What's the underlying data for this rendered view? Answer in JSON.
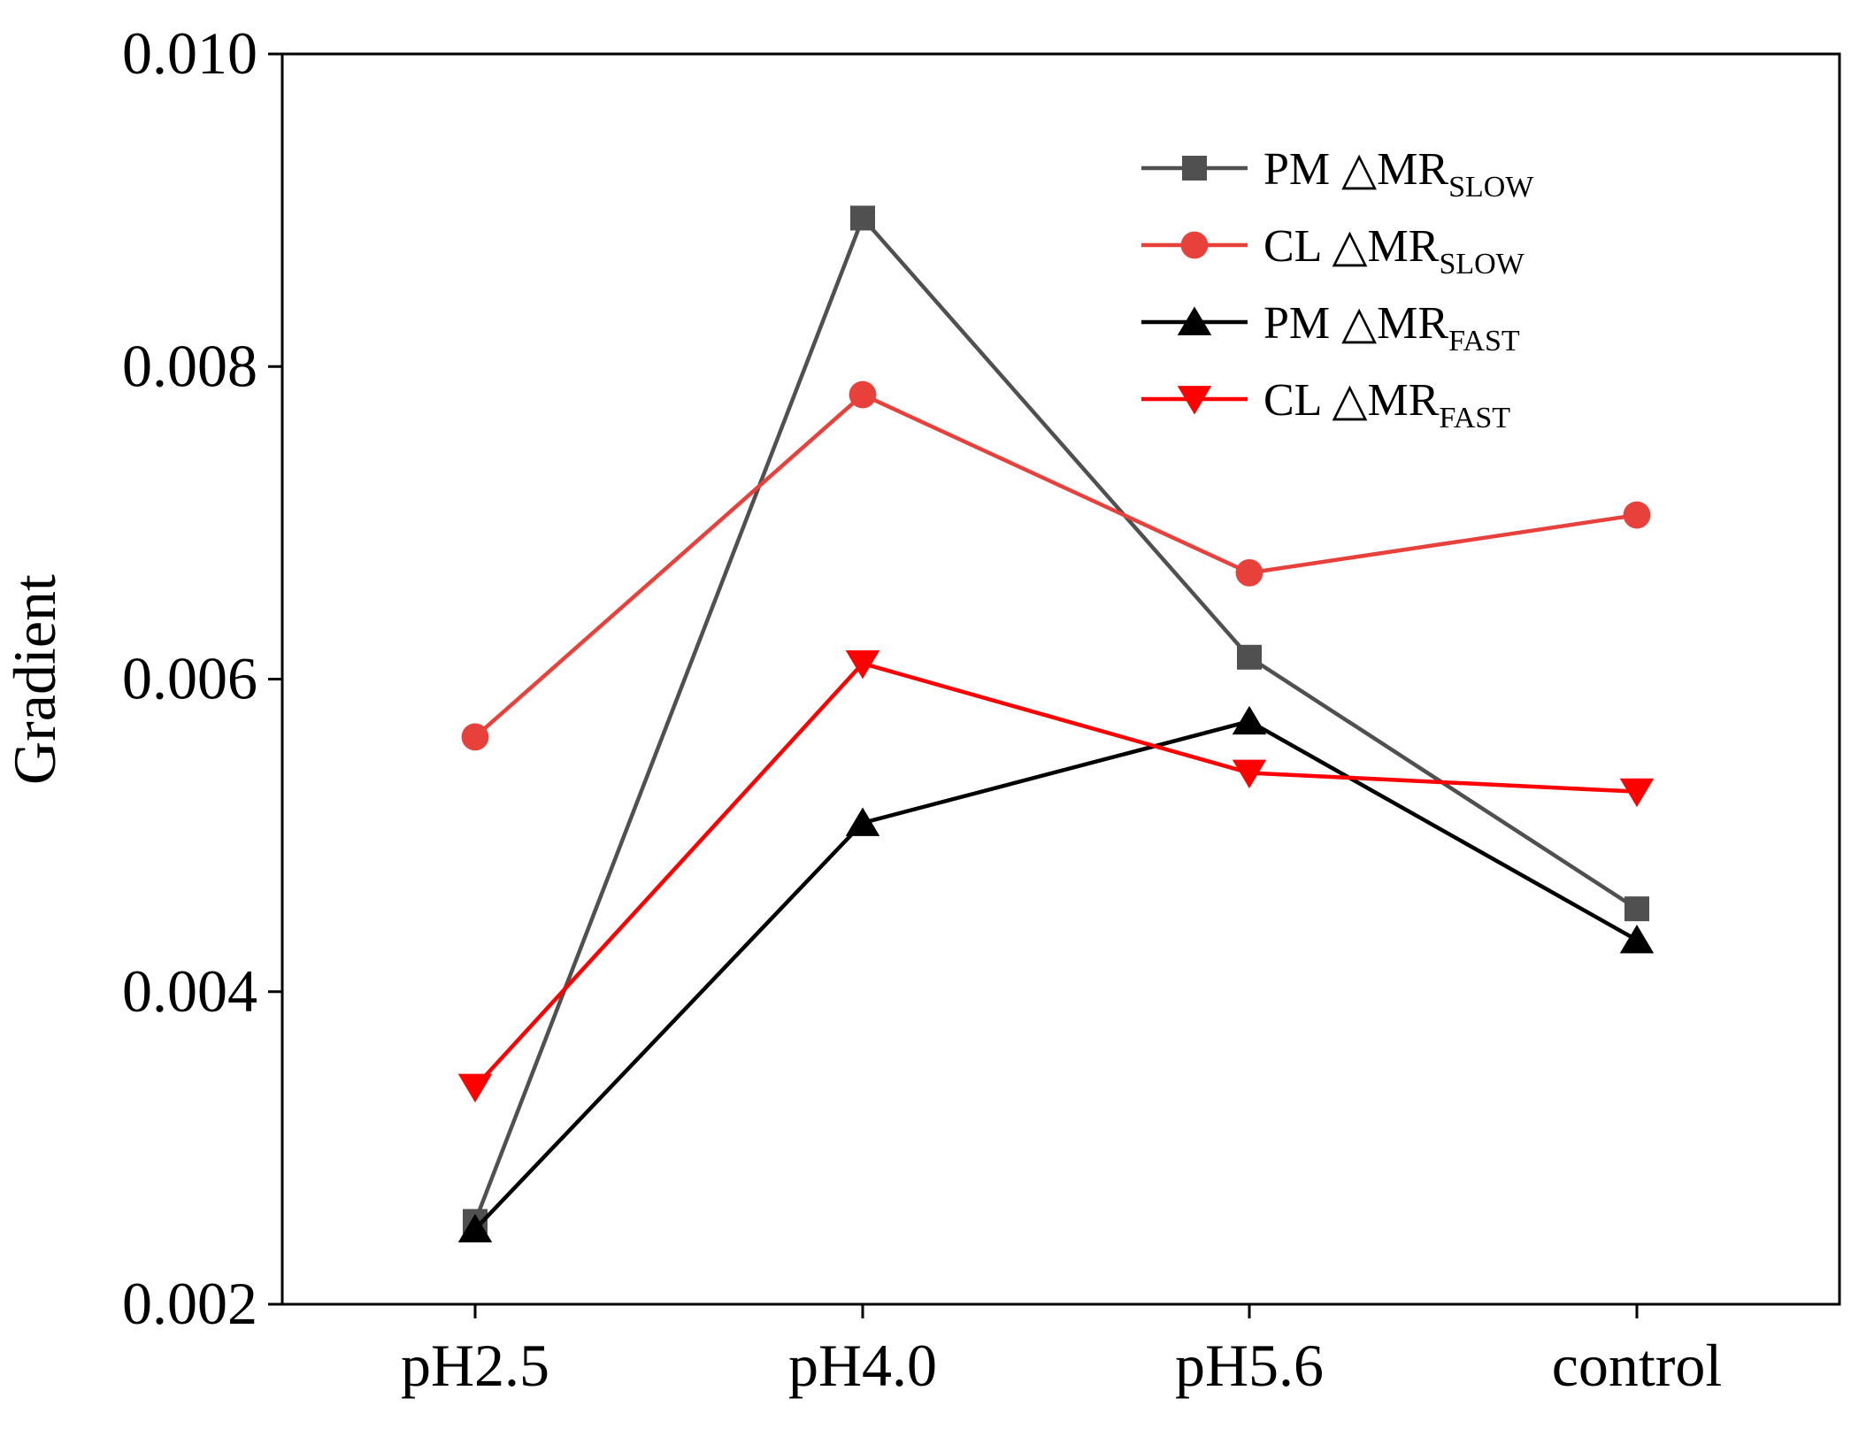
{
  "chart_data": {
    "type": "line",
    "title": "",
    "xlabel": "",
    "ylabel": "Gradient",
    "categories": [
      "pH2.5",
      "pH4.0",
      "pH5.6",
      "control"
    ],
    "ylim": [
      0.002,
      0.01
    ],
    "yticks": [
      0.002,
      0.004,
      0.006,
      0.008,
      0.01
    ],
    "ytick_labels": [
      "0.002",
      "0.004",
      "0.006",
      "0.008",
      "0.010"
    ],
    "legend_position": "top-right",
    "grid": false,
    "series": [
      {
        "name": "PM △MR",
        "name_main": "PM △MR",
        "name_sub": "SLOW",
        "marker": "square",
        "color": "#505050",
        "values": [
          0.00253,
          0.00895,
          0.00614,
          0.00453
        ]
      },
      {
        "name": "CL △MR",
        "name_main": "CL △MR",
        "name_sub": "SLOW",
        "marker": "circle",
        "color": "#e8413c",
        "values": [
          0.00563,
          0.00782,
          0.00668,
          0.00705
        ]
      },
      {
        "name": "PM △MR",
        "name_main": "PM △MR",
        "name_sub": "FAST",
        "marker": "triangle-up",
        "color": "#000000",
        "values": [
          0.00248,
          0.00508,
          0.00573,
          0.00433
        ]
      },
      {
        "name": "CL △MR",
        "name_main": "CL △MR",
        "name_sub": "FAST",
        "marker": "triangle-down",
        "color": "#ff0000",
        "values": [
          0.00339,
          0.0061,
          0.0054,
          0.00528
        ]
      }
    ]
  }
}
